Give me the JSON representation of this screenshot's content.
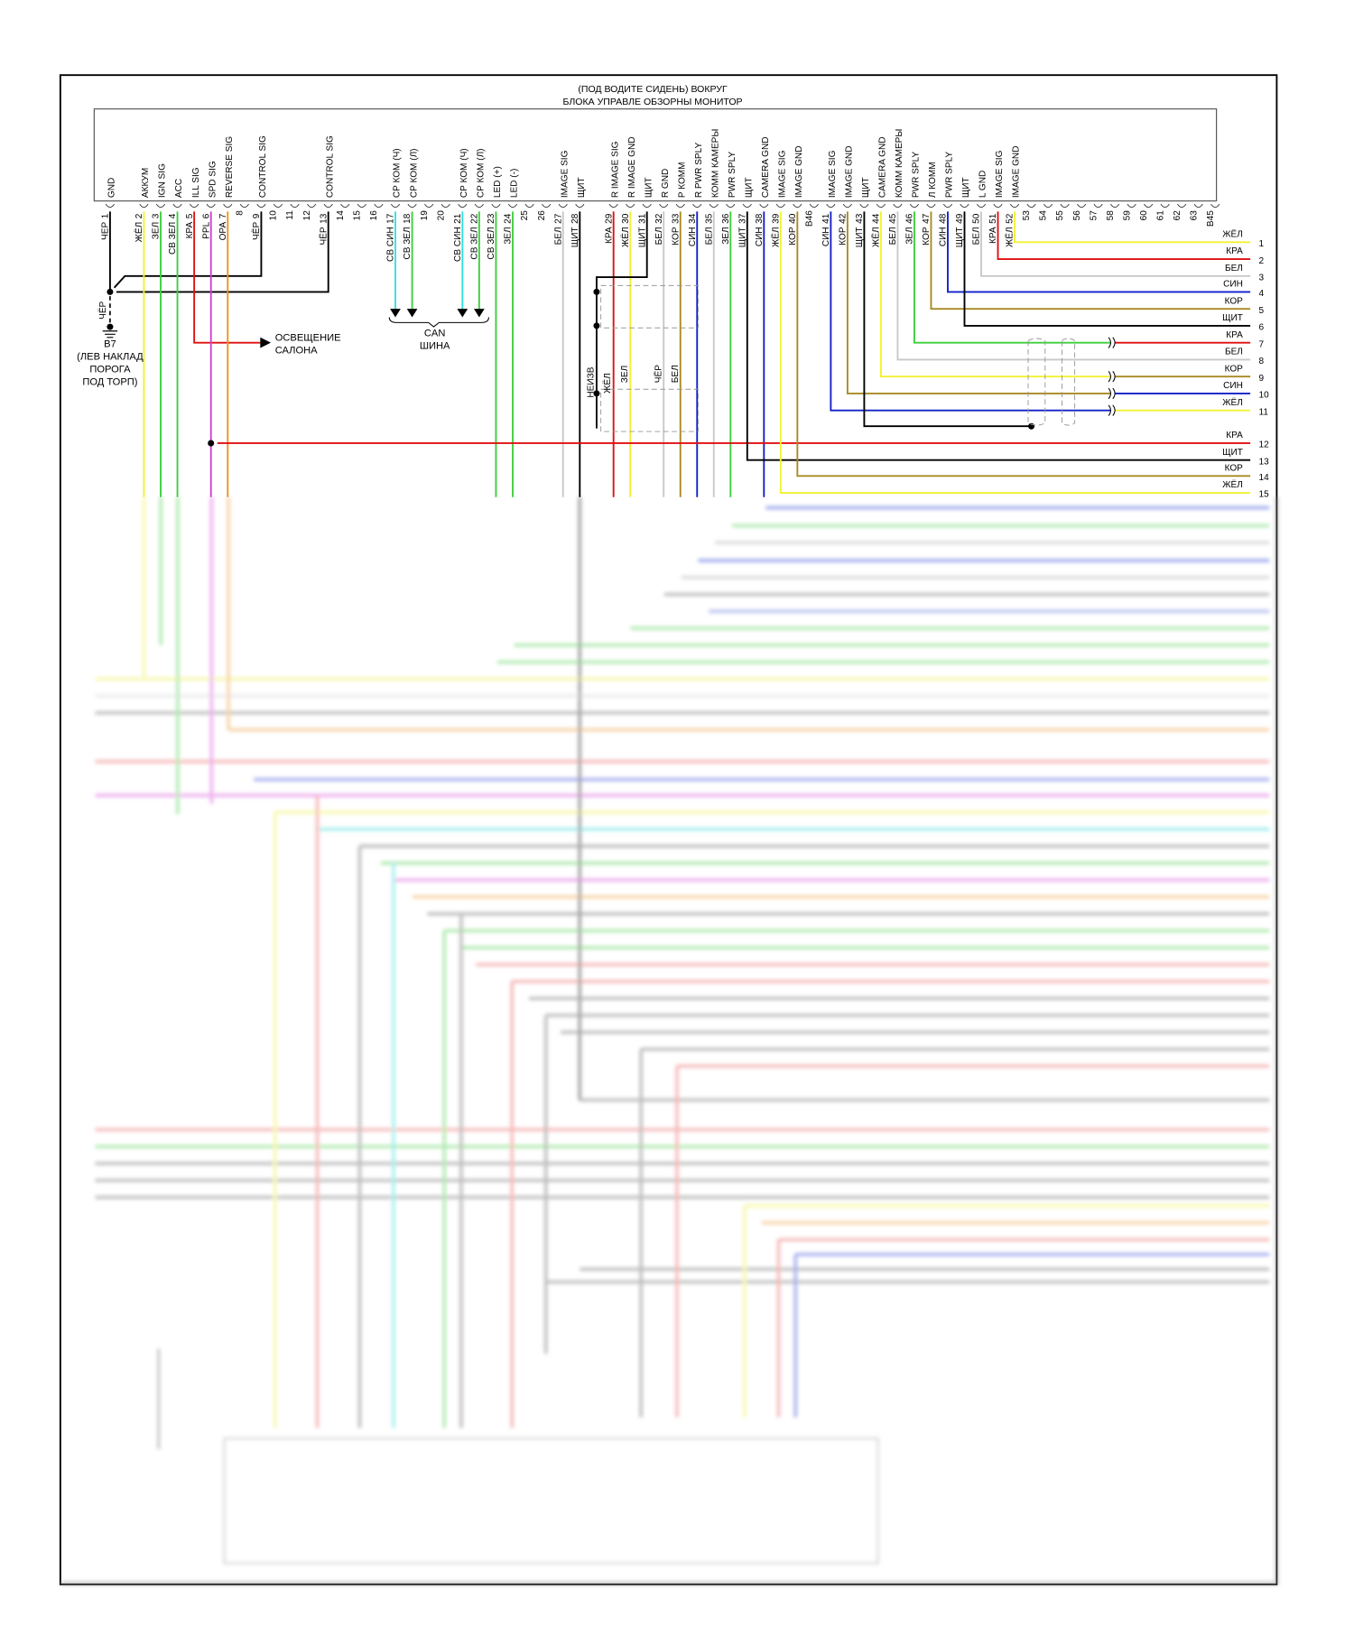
{
  "title": {
    "line1": "(ПОД ВОДИТЕ СИДЕНЬ) ВОКРУГ",
    "line2": "БЛОКА УПРАВЛЕ ОБЗОРНЫ МОНИТОР"
  },
  "connector_pins": [
    {
      "pin": "1",
      "func": "GND",
      "wire": "ЧЕР"
    },
    {
      "pin": "2",
      "func": "АККУМ",
      "wire": "ЖЁЛ"
    },
    {
      "pin": "3",
      "func": "IGN SIG",
      "wire": "ЗЕЛ"
    },
    {
      "pin": "4",
      "func": "ACC",
      "wire": "СВ ЗЕЛ"
    },
    {
      "pin": "5",
      "func": "ILL SIG",
      "wire": "КРА"
    },
    {
      "pin": "6",
      "func": "SPD SIG",
      "wire": "PPL"
    },
    {
      "pin": "7",
      "func": "REVERSE SIG",
      "wire": "ОРА"
    },
    {
      "pin": "8",
      "func": "",
      "wire": ""
    },
    {
      "pin": "9",
      "func": "CONTROL SIG",
      "wire": "ЧЁР"
    },
    {
      "pin": "10",
      "func": "",
      "wire": ""
    },
    {
      "pin": "11",
      "func": "",
      "wire": ""
    },
    {
      "pin": "12",
      "func": "",
      "wire": ""
    },
    {
      "pin": "13",
      "func": "CONTROL SIG",
      "wire": "ЧЁР"
    },
    {
      "pin": "14",
      "func": "",
      "wire": ""
    },
    {
      "pin": "15",
      "func": "",
      "wire": ""
    },
    {
      "pin": "16",
      "func": "",
      "wire": ""
    },
    {
      "pin": "17",
      "func": "CP КОМ (Ч)",
      "wire": "СВ СИН"
    },
    {
      "pin": "18",
      "func": "CP КОМ (Л)",
      "wire": "СВ ЗЕЛ"
    },
    {
      "pin": "19",
      "func": "",
      "wire": ""
    },
    {
      "pin": "20",
      "func": "",
      "wire": ""
    },
    {
      "pin": "21",
      "func": "CP КОМ (Ч)",
      "wire": "СВ СИН"
    },
    {
      "pin": "22",
      "func": "CP КОМ (Л)",
      "wire": "СВ ЗЕЛ"
    },
    {
      "pin": "23",
      "func": "LED (+)",
      "wire": "СВ ЗЕЛ"
    },
    {
      "pin": "24",
      "func": "LED (-)",
      "wire": "ЗЕЛ"
    },
    {
      "pin": "25",
      "func": "",
      "wire": ""
    },
    {
      "pin": "26",
      "func": "",
      "wire": ""
    },
    {
      "pin": "27",
      "func": "IMAGE SIG",
      "wire": "БЕЛ"
    },
    {
      "pin": "28",
      "func": "ЩИТ",
      "wire": "ЩИТ"
    },
    {
      "pin": "29",
      "func": "R IMAGE SIG",
      "wire": "КРА"
    },
    {
      "pin": "30",
      "func": "R IMAGE GND",
      "wire": "ЖЁЛ"
    },
    {
      "pin": "31",
      "func": "ЩИТ",
      "wire": "ЩИТ"
    },
    {
      "pin": "32",
      "func": "R GND",
      "wire": "БЕЛ"
    },
    {
      "pin": "33",
      "func": "P КОММ",
      "wire": "КОР"
    },
    {
      "pin": "34",
      "func": "R PWR SPLY",
      "wire": "СИН"
    },
    {
      "pin": "35",
      "func": "КОММ КАМЕРЫ",
      "wire": "БЕЛ"
    },
    {
      "pin": "36",
      "func": "PWR SPLY",
      "wire": "ЗЕЛ"
    },
    {
      "pin": "37",
      "func": "ЩИТ",
      "wire": "ЩИТ"
    },
    {
      "pin": "38",
      "func": "CAMERA GND",
      "wire": "СИН"
    },
    {
      "pin": "39",
      "func": "IMAGE SIG",
      "wire": "ЖЁЛ"
    },
    {
      "pin": "40",
      "func": "IMAGE GND",
      "wire": "КОР"
    },
    {
      "pin": "B46",
      "func": "",
      "wire": ""
    },
    {
      "pin": "41",
      "func": "IMAGE SIG",
      "wire": "СИН"
    },
    {
      "pin": "42",
      "func": "IMAGE GND",
      "wire": "КОР"
    },
    {
      "pin": "43",
      "func": "ЩИТ",
      "wire": "ЩИТ"
    },
    {
      "pin": "44",
      "func": "CAMERA GND",
      "wire": "ЖЁЛ"
    },
    {
      "pin": "45",
      "func": "КОММ КАМЕРЫ",
      "wire": "БЕЛ"
    },
    {
      "pin": "46",
      "func": "PWR SPLY",
      "wire": "ЗЕЛ"
    },
    {
      "pin": "47",
      "func": "Л КОММ",
      "wire": "КОР"
    },
    {
      "pin": "48",
      "func": "PWR SPLY",
      "wire": "СИН"
    },
    {
      "pin": "49",
      "func": "ЩИТ",
      "wire": "ЩИТ"
    },
    {
      "pin": "50",
      "func": "L GND",
      "wire": "БЕЛ"
    },
    {
      "pin": "51",
      "func": "IMAGE SIG",
      "wire": "КРА"
    },
    {
      "pin": "52",
      "func": "IMAGE GND",
      "wire": "ЖЁЛ"
    },
    {
      "pin": "53",
      "func": "",
      "wire": ""
    },
    {
      "pin": "54",
      "func": "",
      "wire": ""
    },
    {
      "pin": "55",
      "func": "",
      "wire": ""
    },
    {
      "pin": "56",
      "func": "",
      "wire": ""
    },
    {
      "pin": "57",
      "func": "",
      "wire": ""
    },
    {
      "pin": "58",
      "func": "",
      "wire": ""
    },
    {
      "pin": "59",
      "func": "",
      "wire": ""
    },
    {
      "pin": "60",
      "func": "",
      "wire": ""
    },
    {
      "pin": "61",
      "func": "",
      "wire": ""
    },
    {
      "pin": "62",
      "func": "",
      "wire": ""
    },
    {
      "pin": "63",
      "func": "",
      "wire": ""
    },
    {
      "pin": "B45",
      "func": "",
      "wire": ""
    }
  ],
  "right_wires": [
    {
      "num": "1",
      "color": "ЖЁЛ"
    },
    {
      "num": "2",
      "color": "КРА"
    },
    {
      "num": "3",
      "color": "БЕЛ"
    },
    {
      "num": "4",
      "color": "СИН"
    },
    {
      "num": "5",
      "color": "КОР"
    },
    {
      "num": "6",
      "color": "ЩИТ"
    },
    {
      "num": "7",
      "color": "КРА"
    },
    {
      "num": "8",
      "color": "БЕЛ"
    },
    {
      "num": "9",
      "color": "КОР"
    },
    {
      "num": "10",
      "color": "СИН"
    },
    {
      "num": "11",
      "color": "ЖЁЛ"
    },
    {
      "num": "12",
      "color": "КРА"
    },
    {
      "num": "13",
      "color": "ЩИТ"
    },
    {
      "num": "14",
      "color": "КОР"
    },
    {
      "num": "15",
      "color": "ЖЁЛ"
    }
  ],
  "ground": {
    "wire": "ЧЁР",
    "id": "B7",
    "loc1": "(ЛЕВ НАКЛАД",
    "loc2": "ПОРОГА",
    "loc3": "ПОД ТОРП)"
  },
  "interior_light": {
    "line1": "ОСВЕЩЕНИЕ",
    "line2": "САЛОНА"
  },
  "can_bus": {
    "line1": "CAN",
    "line2": "ШИНА"
  },
  "shield_labels": [
    "НЕИЗВ",
    "ЖЁЛ",
    "ЗЕЛ",
    "ЧЁР",
    "БЕЛ"
  ],
  "wire_colors": {
    "ЧЕР": "#000000",
    "ЧЁР": "#000000",
    "ЩИТ": "#000000",
    "ЖЁЛ": "#f2f230",
    "ЗЕЛ": "#3ccf3c",
    "СВ ЗЕЛ": "#3ccf3c",
    "КРА": "#e01010",
    "PPL": "#d040d0",
    "ОРА": "#f0901e",
    "СВ СИН": "#30e0e0",
    "БЕЛ": "#c8c8c8",
    "КОР": "#a88a20",
    "СИН": "#1020c8"
  }
}
